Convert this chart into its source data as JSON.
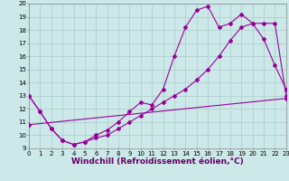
{
  "title": "",
  "xlabel": "Windchill (Refroidissement éolien,°C)",
  "ylabel": "",
  "xlim": [
    0,
    23
  ],
  "ylim": [
    9,
    20
  ],
  "xticks": [
    0,
    1,
    2,
    3,
    4,
    5,
    6,
    7,
    8,
    9,
    10,
    11,
    12,
    13,
    14,
    15,
    16,
    17,
    18,
    19,
    20,
    21,
    22,
    23
  ],
  "yticks": [
    9,
    10,
    11,
    12,
    13,
    14,
    15,
    16,
    17,
    18,
    19,
    20
  ],
  "bg_color": "#cce8e8",
  "grid_color": "#aacccc",
  "line_color": "#990099",
  "line1_x": [
    0,
    1,
    2,
    3,
    4,
    5,
    6,
    7,
    8,
    9,
    10,
    11,
    12,
    13,
    14,
    15,
    16,
    17,
    18,
    19,
    20,
    21,
    22,
    23
  ],
  "line1_y": [
    13.0,
    11.8,
    10.5,
    9.6,
    9.3,
    9.5,
    10.0,
    10.4,
    11.0,
    11.8,
    12.5,
    12.3,
    13.5,
    16.0,
    18.2,
    19.5,
    19.8,
    18.2,
    18.5,
    19.2,
    18.5,
    17.3,
    15.3,
    13.5
  ],
  "line2_x": [
    0,
    1,
    2,
    3,
    4,
    5,
    6,
    7,
    8,
    9,
    10,
    11,
    12,
    13,
    14,
    15,
    16,
    17,
    18,
    19,
    20,
    21,
    22,
    23
  ],
  "line2_y": [
    13.0,
    11.8,
    10.5,
    9.6,
    9.3,
    9.5,
    9.8,
    10.0,
    10.5,
    11.0,
    11.5,
    12.0,
    12.5,
    13.0,
    13.5,
    14.2,
    15.0,
    16.0,
    17.2,
    18.2,
    18.5,
    18.5,
    18.5,
    13.0
  ],
  "line3_x": [
    0,
    23
  ],
  "line3_y": [
    10.8,
    12.8
  ],
  "marker": "D",
  "marker_size": 2.0,
  "linewidth": 0.8,
  "tick_fontsize": 5.0,
  "xlabel_fontsize": 6.5,
  "xlabel_color": "#660066",
  "spine_color": "#888888"
}
